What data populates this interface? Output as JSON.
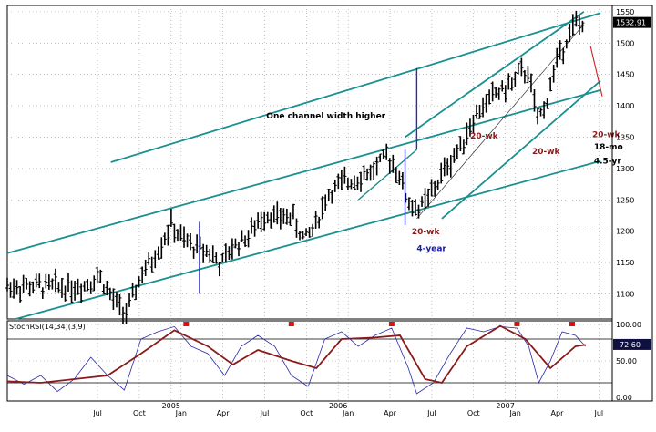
{
  "chart_data": [
    {
      "type": "ohlc",
      "title": "",
      "xlabel": "",
      "ylabel": "",
      "x_tick_labels": [
        "Jul",
        "Oct",
        "2005",
        "Jan",
        "Apr",
        "Jul",
        "Oct",
        "2006",
        "Jan",
        "Apr",
        "Jul",
        "Oct",
        "2007",
        "Jan",
        "Apr",
        "Jul"
      ],
      "y_tick_labels": [
        "1550",
        "1500",
        "1450",
        "1400",
        "1350",
        "1300",
        "1250",
        "1200",
        "1150",
        "1100"
      ],
      "ylim": [
        1060,
        1560
      ],
      "last_price_label": "1532.91",
      "grid": true,
      "weekly_close": [
        {
          "t": 2004.45,
          "v": 1112
        },
        {
          "t": 2004.55,
          "v": 1130
        },
        {
          "t": 2004.62,
          "v": 1095
        },
        {
          "t": 2004.68,
          "v": 1075
        },
        {
          "t": 2004.72,
          "v": 1070
        },
        {
          "t": 2004.8,
          "v": 1130
        },
        {
          "t": 2004.86,
          "v": 1150
        },
        {
          "t": 2004.92,
          "v": 1180
        },
        {
          "t": 2004.98,
          "v": 1210
        },
        {
          "t": 2005.05,
          "v": 1185
        },
        {
          "t": 2005.12,
          "v": 1175
        },
        {
          "t": 2005.2,
          "v": 1170
        },
        {
          "t": 2005.28,
          "v": 1145
        },
        {
          "t": 2005.35,
          "v": 1175
        },
        {
          "t": 2005.45,
          "v": 1195
        },
        {
          "t": 2005.55,
          "v": 1230
        },
        {
          "t": 2005.62,
          "v": 1220
        },
        {
          "t": 2005.7,
          "v": 1225
        },
        {
          "t": 2005.78,
          "v": 1185
        },
        {
          "t": 2005.85,
          "v": 1215
        },
        {
          "t": 2005.92,
          "v": 1260
        },
        {
          "t": 2006.0,
          "v": 1275
        },
        {
          "t": 2006.08,
          "v": 1285
        },
        {
          "t": 2006.18,
          "v": 1295
        },
        {
          "t": 2006.28,
          "v": 1320
        },
        {
          "t": 2006.33,
          "v": 1300
        },
        {
          "t": 2006.4,
          "v": 1245
        },
        {
          "t": 2006.47,
          "v": 1235
        },
        {
          "t": 2006.55,
          "v": 1265
        },
        {
          "t": 2006.62,
          "v": 1300
        },
        {
          "t": 2006.7,
          "v": 1330
        },
        {
          "t": 2006.78,
          "v": 1375
        },
        {
          "t": 2006.85,
          "v": 1400
        },
        {
          "t": 2006.92,
          "v": 1420
        },
        {
          "t": 2007.0,
          "v": 1430
        },
        {
          "t": 2007.06,
          "v": 1450
        },
        {
          "t": 2007.12,
          "v": 1455
        },
        {
          "t": 2007.17,
          "v": 1375
        },
        {
          "t": 2007.22,
          "v": 1400
        },
        {
          "t": 2007.28,
          "v": 1465
        },
        {
          "t": 2007.35,
          "v": 1510
        },
        {
          "t": 2007.4,
          "v": 1530
        },
        {
          "t": 2007.44,
          "v": 1532
        }
      ],
      "trendlines": [
        {
          "from": {
            "t": 2004.62,
            "v": 1310
          },
          "to": {
            "t": 2007.55,
            "v": 1548
          }
        },
        {
          "from": {
            "t": 2004.0,
            "v": 1165
          },
          "to": {
            "t": 2007.55,
            "v": 1425
          }
        },
        {
          "from": {
            "t": 2004.05,
            "v": 1060
          },
          "to": {
            "t": 2007.55,
            "v": 1312
          }
        },
        {
          "from": {
            "t": 2006.6,
            "v": 1220
          },
          "to": {
            "t": 2007.55,
            "v": 1440
          }
        },
        {
          "from": {
            "t": 2006.38,
            "v": 1350
          },
          "to": {
            "t": 2007.45,
            "v": 1550
          }
        },
        {
          "from": {
            "t": 2006.1,
            "v": 1250
          },
          "to": {
            "t": 2006.45,
            "v": 1330
          }
        },
        {
          "from": {
            "t": 2006.45,
            "v": 1220
          },
          "to": {
            "t": 2007.45,
            "v": 1530
          }
        }
      ],
      "annotations": [
        {
          "text": "One channel width higher",
          "t": 2005.55,
          "v": 1380,
          "color": "#000000"
        },
        {
          "text": "20-wk",
          "t": 2006.42,
          "v": 1195,
          "color": "#8b1a1a"
        },
        {
          "text": "4-year",
          "t": 2006.45,
          "v": 1168,
          "color": "#1a1aa8"
        },
        {
          "text": "20-wk",
          "t": 2006.77,
          "v": 1348,
          "color": "#8b1a1a"
        },
        {
          "text": "20-wk",
          "t": 2007.14,
          "v": 1323,
          "color": "#8b1a1a"
        },
        {
          "text": "20-wk",
          "t": 2007.5,
          "v": 1350,
          "color": "#8b1a1a"
        },
        {
          "text": "18-mo",
          "t": 2007.51,
          "v": 1330,
          "color": "#000000"
        },
        {
          "text": "4.5-yr",
          "t": 2007.51,
          "v": 1308,
          "color": "#000000"
        }
      ]
    },
    {
      "type": "line",
      "title": "StochRSI(14,34)(3,9)",
      "y_tick_labels": [
        "100.00",
        "50.00",
        "0.00"
      ],
      "ylim": [
        0,
        100
      ],
      "last_value_label": "72.60",
      "reference_levels": [
        80,
        20
      ],
      "series": [
        {
          "color": "#2a2aa8",
          "points": [
            {
              "t": 2004.0,
              "v": 30
            },
            {
              "t": 2004.1,
              "v": 18
            },
            {
              "t": 2004.2,
              "v": 30
            },
            {
              "t": 2004.3,
              "v": 8
            },
            {
              "t": 2004.4,
              "v": 25
            },
            {
              "t": 2004.5,
              "v": 55
            },
            {
              "t": 2004.6,
              "v": 30
            },
            {
              "t": 2004.7,
              "v": 10
            },
            {
              "t": 2004.8,
              "v": 80
            },
            {
              "t": 2004.9,
              "v": 90
            },
            {
              "t": 2005.0,
              "v": 97
            },
            {
              "t": 2005.1,
              "v": 70
            },
            {
              "t": 2005.2,
              "v": 60
            },
            {
              "t": 2005.3,
              "v": 30
            },
            {
              "t": 2005.4,
              "v": 70
            },
            {
              "t": 2005.5,
              "v": 85
            },
            {
              "t": 2005.6,
              "v": 70
            },
            {
              "t": 2005.7,
              "v": 30
            },
            {
              "t": 2005.8,
              "v": 15
            },
            {
              "t": 2005.9,
              "v": 80
            },
            {
              "t": 2006.0,
              "v": 90
            },
            {
              "t": 2006.1,
              "v": 70
            },
            {
              "t": 2006.2,
              "v": 85
            },
            {
              "t": 2006.3,
              "v": 95
            },
            {
              "t": 2006.4,
              "v": 40
            },
            {
              "t": 2006.45,
              "v": 5
            },
            {
              "t": 2006.55,
              "v": 20
            },
            {
              "t": 2006.65,
              "v": 60
            },
            {
              "t": 2006.75,
              "v": 95
            },
            {
              "t": 2006.85,
              "v": 90
            },
            {
              "t": 2006.95,
              "v": 97
            },
            {
              "t": 2007.05,
              "v": 95
            },
            {
              "t": 2007.12,
              "v": 70
            },
            {
              "t": 2007.18,
              "v": 20
            },
            {
              "t": 2007.25,
              "v": 50
            },
            {
              "t": 2007.32,
              "v": 90
            },
            {
              "t": 2007.4,
              "v": 85
            },
            {
              "t": 2007.46,
              "v": 70
            }
          ]
        },
        {
          "color": "#8b1a1a",
          "points": [
            {
              "t": 2004.0,
              "v": 22
            },
            {
              "t": 2004.2,
              "v": 20
            },
            {
              "t": 2004.4,
              "v": 25
            },
            {
              "t": 2004.6,
              "v": 30
            },
            {
              "t": 2004.8,
              "v": 60
            },
            {
              "t": 2005.0,
              "v": 92
            },
            {
              "t": 2005.2,
              "v": 70
            },
            {
              "t": 2005.35,
              "v": 45
            },
            {
              "t": 2005.5,
              "v": 65
            },
            {
              "t": 2005.7,
              "v": 50
            },
            {
              "t": 2005.85,
              "v": 40
            },
            {
              "t": 2006.0,
              "v": 80
            },
            {
              "t": 2006.2,
              "v": 82
            },
            {
              "t": 2006.35,
              "v": 85
            },
            {
              "t": 2006.5,
              "v": 25
            },
            {
              "t": 2006.6,
              "v": 20
            },
            {
              "t": 2006.75,
              "v": 70
            },
            {
              "t": 2006.95,
              "v": 98
            },
            {
              "t": 2007.1,
              "v": 80
            },
            {
              "t": 2007.25,
              "v": 40
            },
            {
              "t": 2007.4,
              "v": 70
            },
            {
              "t": 2007.46,
              "v": 72
            }
          ]
        }
      ],
      "signal_markers": [
        2005.07,
        2005.7,
        2006.3,
        2007.05,
        2007.38
      ]
    }
  ]
}
